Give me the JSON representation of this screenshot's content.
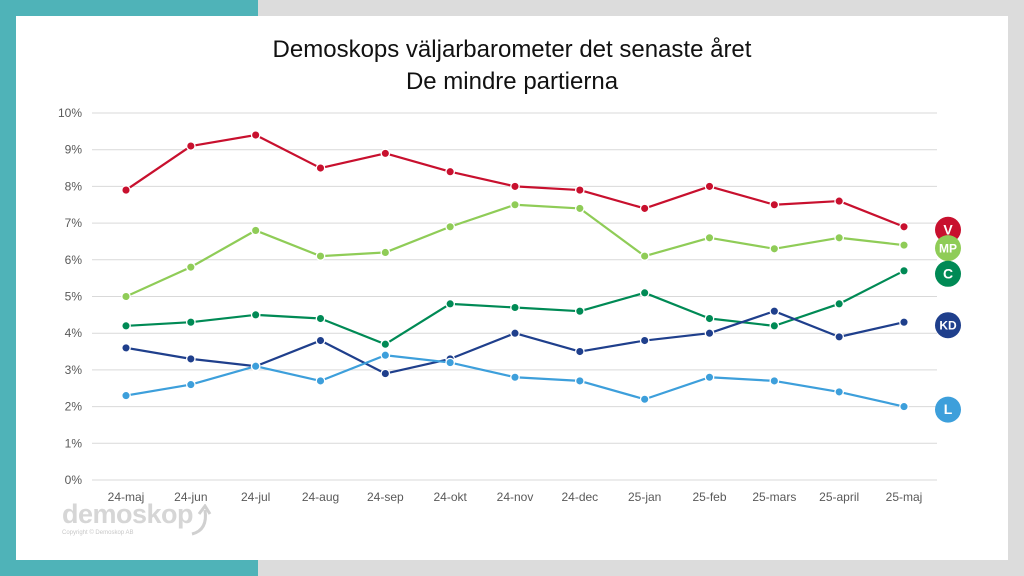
{
  "title_line1": "Demoskops väljarbarometer det senaste året",
  "title_line2": "De mindre partierna",
  "logo": {
    "word": "demoskop",
    "copyright": "Copyright © Demoskop AB"
  },
  "colors": {
    "teal_bar": "#4fb3b8",
    "gridline": "#d9d9d9",
    "axis_text": "#595959"
  },
  "chart_data": {
    "type": "line",
    "title": "Demoskops väljarbarometer det senaste året — De mindre partierna",
    "xlabel": "",
    "ylabel": "",
    "ylim": [
      0,
      10
    ],
    "y_ticks": [
      "0%",
      "1%",
      "2%",
      "3%",
      "4%",
      "5%",
      "6%",
      "7%",
      "8%",
      "9%",
      "10%"
    ],
    "grid": true,
    "categories": [
      "24-maj",
      "24-jun",
      "24-jul",
      "24-aug",
      "24-sep",
      "24-okt",
      "24-nov",
      "24-dec",
      "25-jan",
      "25-feb",
      "25-mars",
      "25-april",
      "25-maj"
    ],
    "series": [
      {
        "name": "V",
        "color": "#c8102e",
        "values": [
          7.9,
          9.1,
          9.4,
          8.5,
          8.9,
          8.4,
          8.0,
          7.9,
          7.4,
          8.0,
          7.5,
          7.6,
          6.9
        ]
      },
      {
        "name": "MP",
        "color": "#8fcc57",
        "values": [
          5.0,
          5.8,
          6.8,
          6.1,
          6.2,
          6.9,
          7.5,
          7.4,
          6.1,
          6.6,
          6.3,
          6.6,
          6.4
        ]
      },
      {
        "name": "C",
        "color": "#008a55",
        "values": [
          4.2,
          4.3,
          4.5,
          4.4,
          3.7,
          4.8,
          4.7,
          4.6,
          5.1,
          4.4,
          4.2,
          4.8,
          5.7
        ]
      },
      {
        "name": "KD",
        "color": "#1f3f8c",
        "values": [
          3.6,
          3.3,
          3.1,
          3.8,
          2.9,
          3.3,
          4.0,
          3.5,
          3.8,
          4.0,
          4.6,
          3.9,
          4.3
        ]
      },
      {
        "name": "L",
        "color": "#3d9fdb",
        "values": [
          2.3,
          2.6,
          3.1,
          2.7,
          3.4,
          3.2,
          2.8,
          2.7,
          2.2,
          2.8,
          2.7,
          2.4,
          2.0
        ]
      }
    ]
  }
}
